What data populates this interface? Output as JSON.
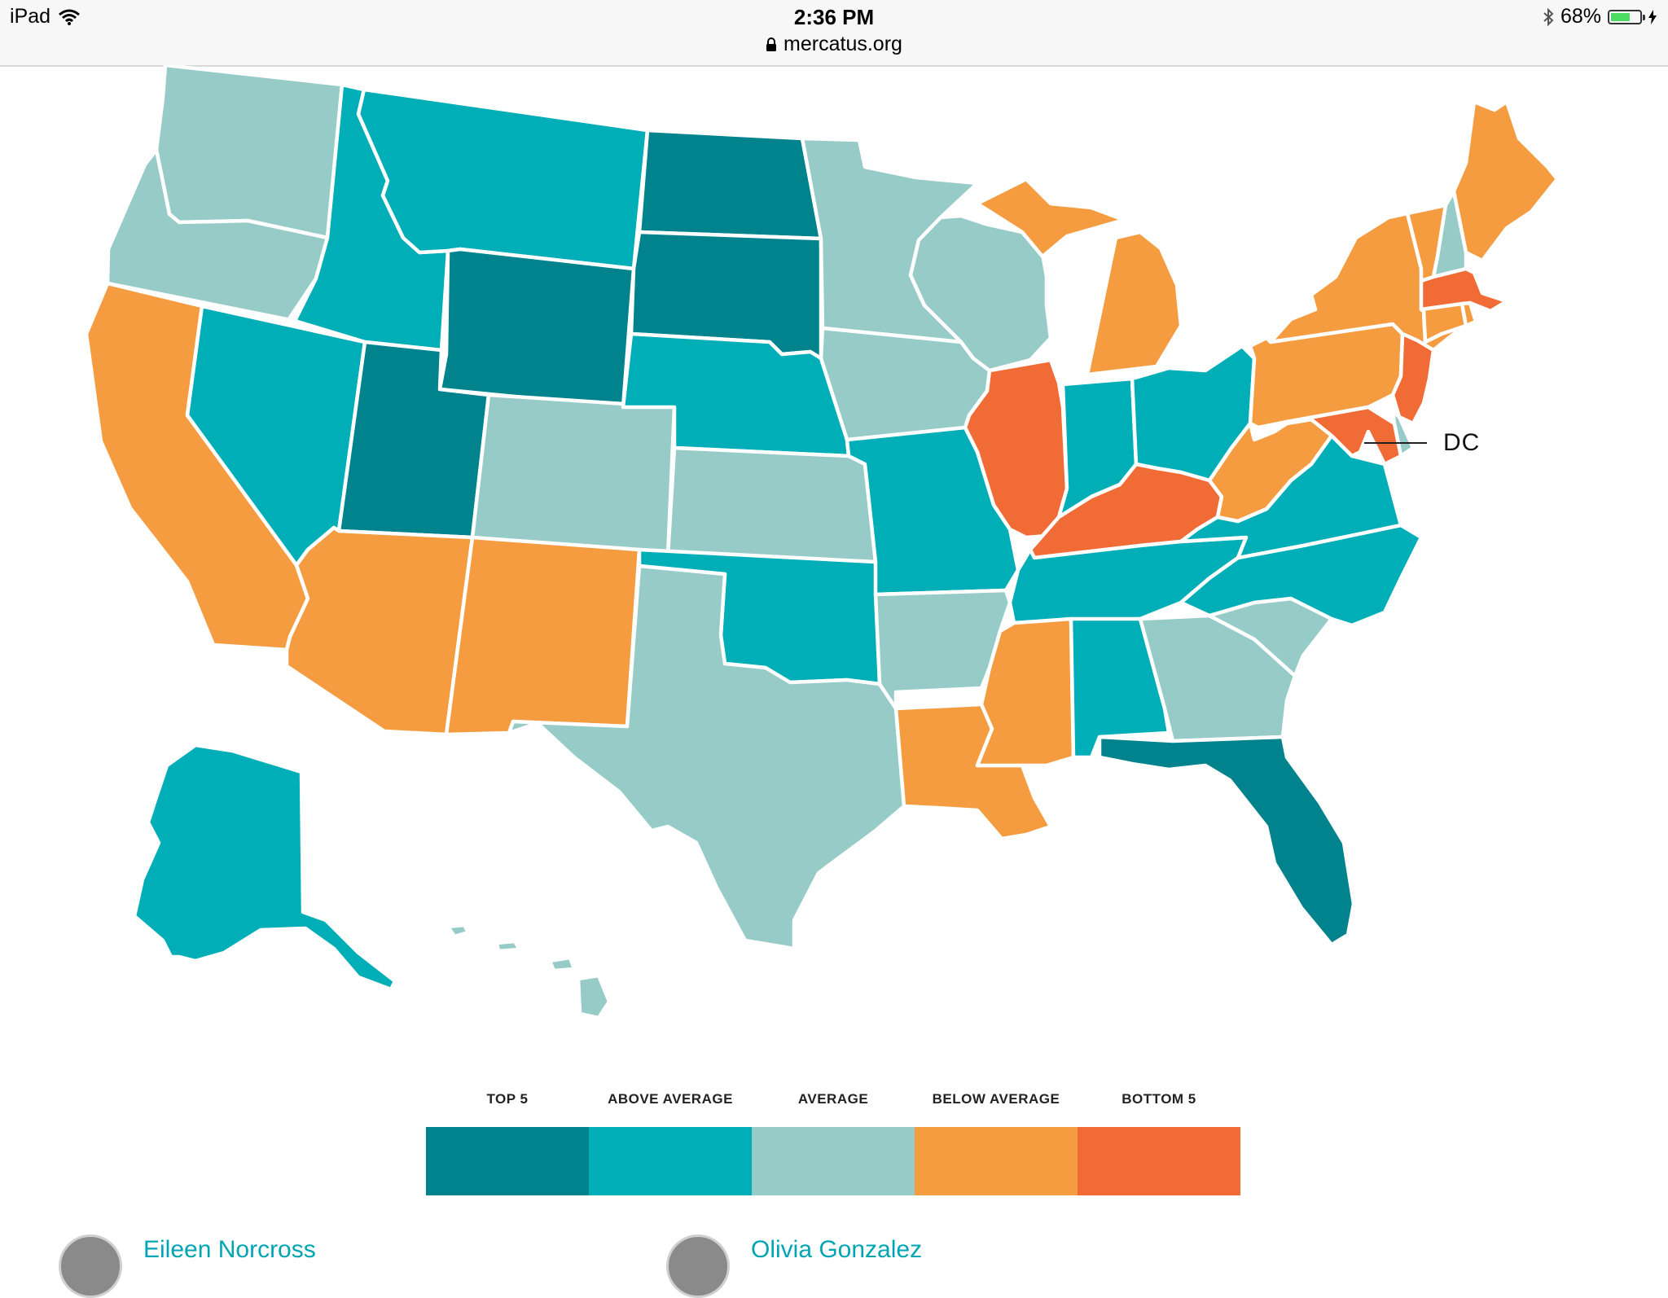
{
  "status_bar": {
    "device": "iPad",
    "time": "2:36 PM",
    "url": "mercatus.org",
    "battery": "68%",
    "battery_level": 0.68,
    "icons": [
      "wifi-icon",
      "lock-icon",
      "bluetooth-icon",
      "battery-icon"
    ]
  },
  "map": {
    "dc_label": "DC",
    "colors": {
      "top5": "#00838c",
      "above": "#00aeb7",
      "average": "#97cbc8",
      "below": "#f59c40",
      "bottom5": "#f16b37"
    },
    "states": [
      {
        "id": "WA",
        "cat": "average"
      },
      {
        "id": "OR",
        "cat": "average"
      },
      {
        "id": "CA",
        "cat": "below"
      },
      {
        "id": "NV",
        "cat": "above"
      },
      {
        "id": "ID",
        "cat": "above"
      },
      {
        "id": "MT",
        "cat": "above"
      },
      {
        "id": "WY",
        "cat": "top5"
      },
      {
        "id": "UT",
        "cat": "top5"
      },
      {
        "id": "AZ",
        "cat": "below"
      },
      {
        "id": "CO",
        "cat": "average"
      },
      {
        "id": "NM",
        "cat": "below"
      },
      {
        "id": "ND",
        "cat": "top5"
      },
      {
        "id": "SD",
        "cat": "top5"
      },
      {
        "id": "NE",
        "cat": "above"
      },
      {
        "id": "KS",
        "cat": "average"
      },
      {
        "id": "OK",
        "cat": "above"
      },
      {
        "id": "TX",
        "cat": "average"
      },
      {
        "id": "MN",
        "cat": "average"
      },
      {
        "id": "IA",
        "cat": "average"
      },
      {
        "id": "MO",
        "cat": "above"
      },
      {
        "id": "AR",
        "cat": "average"
      },
      {
        "id": "LA",
        "cat": "below"
      },
      {
        "id": "WI",
        "cat": "average"
      },
      {
        "id": "IL",
        "cat": "bottom5"
      },
      {
        "id": "MI",
        "cat": "below"
      },
      {
        "id": "IN",
        "cat": "above"
      },
      {
        "id": "OH",
        "cat": "above"
      },
      {
        "id": "KY",
        "cat": "bottom5"
      },
      {
        "id": "TN",
        "cat": "above"
      },
      {
        "id": "MS",
        "cat": "below"
      },
      {
        "id": "AL",
        "cat": "above"
      },
      {
        "id": "GA",
        "cat": "average"
      },
      {
        "id": "FL",
        "cat": "top5"
      },
      {
        "id": "SC",
        "cat": "average"
      },
      {
        "id": "NC",
        "cat": "above"
      },
      {
        "id": "VA",
        "cat": "above"
      },
      {
        "id": "WV",
        "cat": "below"
      },
      {
        "id": "PA",
        "cat": "below"
      },
      {
        "id": "NY",
        "cat": "below"
      },
      {
        "id": "VT",
        "cat": "below"
      },
      {
        "id": "NH",
        "cat": "average"
      },
      {
        "id": "ME",
        "cat": "below"
      },
      {
        "id": "MA",
        "cat": "bottom5"
      },
      {
        "id": "CT",
        "cat": "below"
      },
      {
        "id": "RI",
        "cat": "below"
      },
      {
        "id": "NJ",
        "cat": "bottom5"
      },
      {
        "id": "DE",
        "cat": "average"
      },
      {
        "id": "MD",
        "cat": "bottom5"
      },
      {
        "id": "AK",
        "cat": "above"
      },
      {
        "id": "HI",
        "cat": "average"
      }
    ]
  },
  "legend": {
    "items": [
      {
        "label": "TOP 5",
        "color": "#00838c"
      },
      {
        "label": "ABOVE AVERAGE",
        "color": "#00aeb7"
      },
      {
        "label": "AVERAGE",
        "color": "#97cbc8"
      },
      {
        "label": "BELOW AVERAGE",
        "color": "#f59c40"
      },
      {
        "label": "BOTTOM 5",
        "color": "#f16b37"
      }
    ]
  },
  "authors": [
    {
      "name": "Eileen Norcross"
    },
    {
      "name": "Olivia Gonzalez"
    }
  ]
}
